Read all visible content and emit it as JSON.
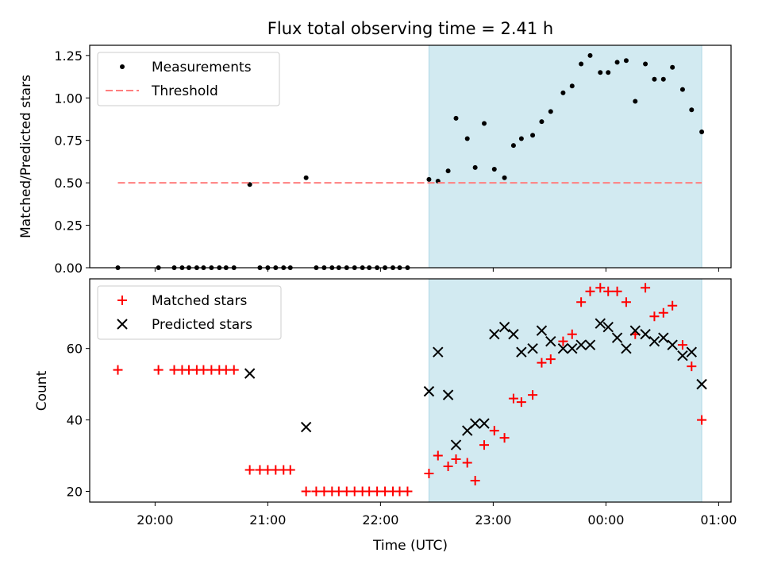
{
  "title": "Flux total observing time = 2.41 h",
  "xlabel": "Time (UTC)",
  "xticks": [
    {
      "t": 20.0,
      "label": "20:00"
    },
    {
      "t": 21.0,
      "label": "21:00"
    },
    {
      "t": 22.0,
      "label": "22:00"
    },
    {
      "t": 23.0,
      "label": "23:00"
    },
    {
      "t": 24.0,
      "label": "00:00"
    },
    {
      "t": 25.0,
      "label": "01:00"
    }
  ],
  "xlim": [
    19.42,
    25.11
  ],
  "shade": {
    "start": 22.43,
    "end": 24.85,
    "color": "#add8e6"
  },
  "chart_data": [
    {
      "type": "scatter",
      "ylabel": "Matched/Predicted stars",
      "ylim": [
        0,
        1.31
      ],
      "yticks": [
        "0.00",
        "0.25",
        "0.50",
        "0.75",
        "1.00",
        "1.25"
      ],
      "legend": "top-left",
      "series": [
        {
          "name": "Measurements",
          "color": "#000000",
          "marker": "dot",
          "x": [
            19.67,
            20.03,
            20.17,
            20.24,
            20.3,
            20.37,
            20.43,
            20.5,
            20.57,
            20.63,
            20.7,
            20.84,
            20.93,
            21.0,
            21.07,
            21.14,
            21.2,
            21.34,
            21.43,
            21.5,
            21.57,
            21.63,
            21.7,
            21.77,
            21.84,
            21.9,
            21.97,
            22.04,
            22.11,
            22.17,
            22.24,
            22.43,
            22.51,
            22.6,
            22.67,
            22.77,
            22.84,
            22.92,
            23.01,
            23.1,
            23.18,
            23.25,
            23.35,
            23.43,
            23.51,
            23.62,
            23.7,
            23.78,
            23.86,
            23.95,
            24.02,
            24.1,
            24.18,
            24.26,
            24.35,
            24.43,
            24.51,
            24.59,
            24.68,
            24.76,
            24.85
          ],
          "y": [
            0.0,
            0.0,
            0.0,
            0.0,
            0.0,
            0.0,
            0.0,
            0.0,
            0.0,
            0.0,
            0.0,
            0.49,
            0.0,
            0.0,
            0.0,
            0.0,
            0.0,
            0.53,
            0.0,
            0.0,
            0.0,
            0.0,
            0.0,
            0.0,
            0.0,
            0.0,
            0.0,
            0.0,
            0.0,
            0.0,
            0.0,
            0.52,
            0.51,
            0.57,
            0.88,
            0.76,
            0.59,
            0.85,
            0.58,
            0.53,
            0.72,
            0.76,
            0.78,
            0.86,
            0.92,
            1.03,
            1.07,
            1.2,
            1.25,
            1.15,
            1.15,
            1.21,
            1.22,
            0.98,
            1.2,
            1.11,
            1.11,
            1.18,
            1.05,
            0.93,
            0.8
          ]
        },
        {
          "name": "Threshold",
          "color": "#ff7f7f",
          "marker": "dashed-line",
          "x": [
            19.67,
            24.85
          ],
          "y": [
            0.5,
            0.5
          ]
        }
      ]
    },
    {
      "type": "scatter",
      "ylabel": "Count",
      "ylim": [
        17,
        79.5
      ],
      "yticks": [
        "20",
        "40",
        "60"
      ],
      "ytick_values": [
        20,
        40,
        60
      ],
      "legend": "top-left",
      "series": [
        {
          "name": "Matched stars",
          "color": "#ff0000",
          "marker": "plus",
          "x": [
            19.67,
            20.03,
            20.17,
            20.24,
            20.3,
            20.37,
            20.43,
            20.5,
            20.57,
            20.63,
            20.7,
            20.84,
            20.93,
            21.0,
            21.07,
            21.14,
            21.2,
            21.34,
            21.43,
            21.5,
            21.57,
            21.63,
            21.7,
            21.77,
            21.84,
            21.9,
            21.97,
            22.04,
            22.11,
            22.17,
            22.24,
            22.43,
            22.51,
            22.6,
            22.67,
            22.77,
            22.84,
            22.92,
            23.01,
            23.1,
            23.18,
            23.25,
            23.35,
            23.43,
            23.51,
            23.62,
            23.7,
            23.78,
            23.86,
            23.95,
            24.02,
            24.1,
            24.18,
            24.26,
            24.35,
            24.43,
            24.51,
            24.59,
            24.68,
            24.76,
            24.85
          ],
          "y": [
            54,
            54,
            54,
            54,
            54,
            54,
            54,
            54,
            54,
            54,
            54,
            26,
            26,
            26,
            26,
            26,
            26,
            20,
            20,
            20,
            20,
            20,
            20,
            20,
            20,
            20,
            20,
            20,
            20,
            20,
            20,
            25,
            30,
            27,
            29,
            28,
            23,
            33,
            37,
            35,
            46,
            45,
            47,
            56,
            57,
            62,
            64,
            73,
            76,
            77,
            76,
            76,
            73,
            64,
            77,
            69,
            70,
            72,
            61,
            55,
            40
          ]
        },
        {
          "name": "Predicted stars",
          "color": "#000000",
          "marker": "cross",
          "x": [
            20.84,
            21.34,
            22.43,
            22.51,
            22.6,
            22.67,
            22.77,
            22.84,
            22.92,
            23.01,
            23.1,
            23.18,
            23.25,
            23.35,
            23.43,
            23.51,
            23.62,
            23.7,
            23.78,
            23.86,
            23.95,
            24.02,
            24.1,
            24.18,
            24.26,
            24.35,
            24.43,
            24.51,
            24.59,
            24.68,
            24.76,
            24.85
          ],
          "y": [
            53,
            38,
            48,
            59,
            47,
            33,
            37,
            39,
            39,
            64,
            66,
            64,
            59,
            60,
            65,
            62,
            60,
            60,
            61,
            61,
            67,
            66,
            63,
            60,
            65,
            64,
            62,
            63,
            61,
            58,
            59,
            50
          ]
        }
      ]
    }
  ]
}
